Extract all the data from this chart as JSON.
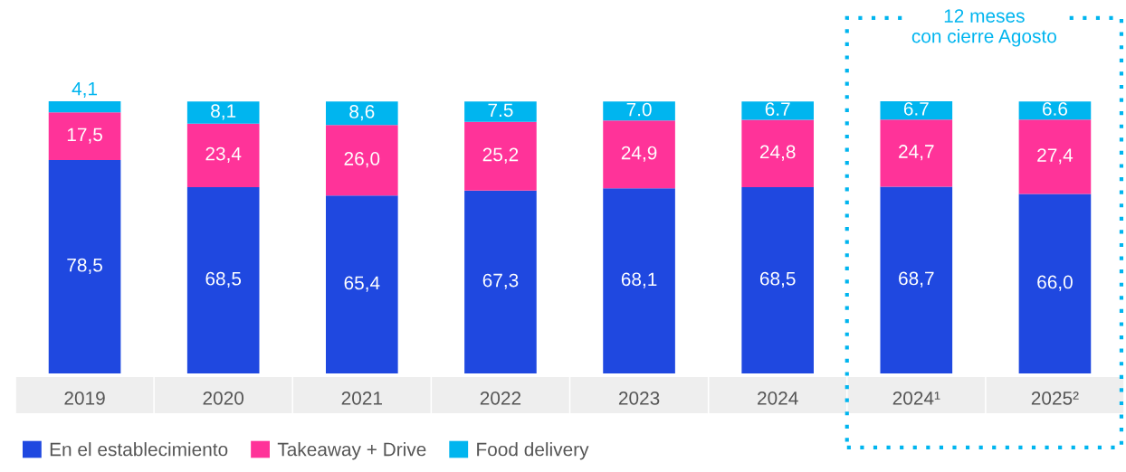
{
  "chart_data": {
    "type": "bar",
    "stacked": true,
    "data_labels": true,
    "legend": "bottom left",
    "grid": false,
    "categories": [
      "2019",
      "2020",
      "2021",
      "2022",
      "2023",
      "2024",
      "2024¹",
      "2025²"
    ],
    "series": [
      {
        "name": "En el establecimiento",
        "color": "#1f48e0",
        "values": [
          78.5,
          68.5,
          65.4,
          67.3,
          68.1,
          68.5,
          68.7,
          66.0
        ],
        "value_labels": [
          "78,5",
          "68,5",
          "65,4",
          "67,3",
          "68,1",
          "68,5",
          "68,7",
          "66,0"
        ]
      },
      {
        "name": "Takeaway + Drive",
        "color": "#ff3399",
        "values": [
          17.5,
          23.4,
          26.0,
          25.2,
          24.9,
          24.8,
          24.7,
          27.4
        ],
        "value_labels": [
          "17,5",
          "23,4",
          "26,0",
          "25,2",
          "24,9",
          "24,8",
          "24,7",
          "27,4"
        ]
      },
      {
        "name": "Food delivery",
        "color": "#00b5ef",
        "values": [
          4.1,
          8.1,
          8.6,
          7.5,
          7.0,
          6.7,
          6.7,
          6.6
        ],
        "value_labels": [
          "4,1",
          "8,1",
          "8,6",
          "7.5",
          "7.0",
          "6.7",
          "6.7",
          "6.6"
        ]
      }
    ],
    "annotations": [
      "12 meses\ncon cierre Agosto"
    ]
  }
}
